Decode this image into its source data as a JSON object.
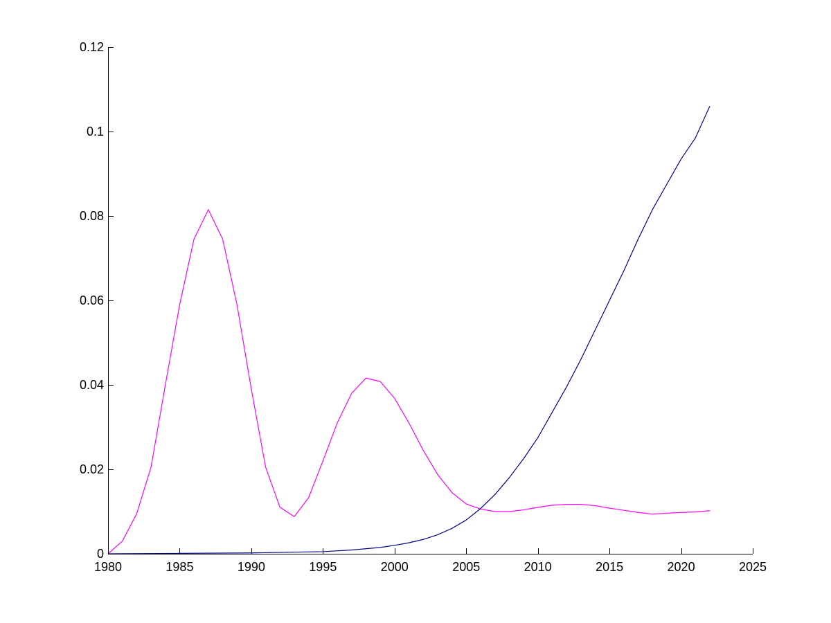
{
  "chart_data": {
    "type": "line",
    "title": "",
    "xlabel": "",
    "ylabel": "",
    "xlim": [
      1980,
      2025
    ],
    "ylim": [
      0,
      0.12
    ],
    "xticks": [
      1980,
      1985,
      1990,
      1995,
      2000,
      2005,
      2010,
      2015,
      2020,
      2025
    ],
    "xtick_labels": [
      "1980",
      "1985",
      "1990",
      "1995",
      "2000",
      "2005",
      "2010",
      "2015",
      "2020",
      "2025"
    ],
    "yticks": [
      0,
      0.02,
      0.04,
      0.06,
      0.08,
      0.1,
      0.12
    ],
    "ytick_labels": [
      "0",
      "0.02",
      "0.04",
      "0.06",
      "0.08",
      "0.1",
      "0.12"
    ],
    "grid": false,
    "legend": "none",
    "series": [
      {
        "color": "#ff00ff",
        "x": [
          1980,
          1981,
          1982,
          1983,
          1984,
          1985,
          1986,
          1987,
          1988,
          1989,
          1990,
          1991,
          1992,
          1993,
          1994,
          1995,
          1996,
          1997,
          1998,
          1999,
          2000,
          2001,
          2002,
          2003,
          2004,
          2005,
          2006,
          2007,
          2008,
          2009,
          2010,
          2011,
          2012,
          2013,
          2014,
          2015,
          2016,
          2017,
          2018,
          2019,
          2020,
          2021,
          2022
        ],
        "y": [
          0.0,
          0.003,
          0.0095,
          0.0205,
          0.04,
          0.059,
          0.0745,
          0.0815,
          0.0745,
          0.059,
          0.039,
          0.0205,
          0.011,
          0.0088,
          0.0133,
          0.022,
          0.031,
          0.038,
          0.0416,
          0.0408,
          0.0368,
          0.031,
          0.0245,
          0.0188,
          0.0145,
          0.0118,
          0.0106,
          0.01,
          0.01,
          0.0104,
          0.011,
          0.0115,
          0.0117,
          0.0117,
          0.0114,
          0.0108,
          0.0103,
          0.0098,
          0.0094,
          0.0096,
          0.0098,
          0.0099,
          0.0102
        ]
      },
      {
        "color": "#00008b",
        "x": [
          1980,
          1985,
          1990,
          1995,
          1997,
          1999,
          2000,
          2001,
          2002,
          2003,
          2004,
          2005,
          2006,
          2007,
          2008,
          2009,
          2010,
          2011,
          2012,
          2013,
          2014,
          2015,
          2016,
          2017,
          2018,
          2019,
          2020,
          2021,
          2022
        ],
        "y": [
          0.0,
          0.0001,
          0.0002,
          0.0005,
          0.0009,
          0.0015,
          0.002,
          0.0026,
          0.0034,
          0.0045,
          0.006,
          0.008,
          0.0107,
          0.014,
          0.018,
          0.0225,
          0.0275,
          0.0335,
          0.0395,
          0.046,
          0.053,
          0.06,
          0.067,
          0.0745,
          0.0815,
          0.0875,
          0.0935,
          0.0985,
          0.106
        ]
      }
    ]
  }
}
